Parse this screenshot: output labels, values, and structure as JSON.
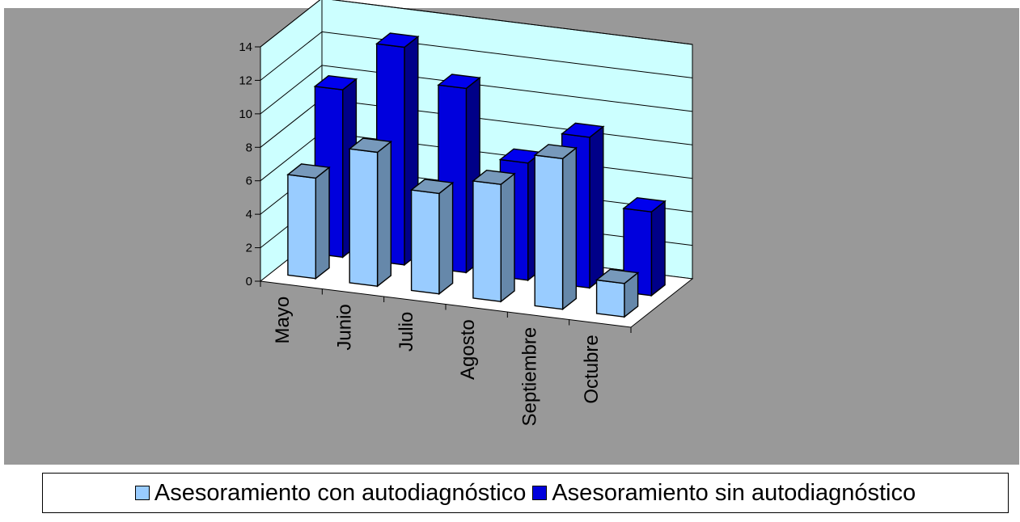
{
  "chart_data": {
    "type": "bar",
    "three_d": true,
    "title": "",
    "xlabel": "",
    "ylabel": "",
    "categories": [
      "Mayo",
      "Junio",
      "Julio",
      "Agosto",
      "Septiembre",
      "Octubre"
    ],
    "series": [
      {
        "name": "Asesoramiento con autodiagnóstico",
        "values": [
          6,
          8,
          6,
          7,
          9,
          2
        ],
        "color": "#99CCFF"
      },
      {
        "name": "Asesoramiento sin autodiagnóstico",
        "values": [
          10,
          13,
          11,
          7,
          9,
          5
        ],
        "color": "#0000DD"
      }
    ],
    "ylim": [
      0,
      14
    ],
    "yticks": [
      "0",
      "2",
      "4",
      "6",
      "8",
      "10",
      "12",
      "14"
    ],
    "grid": true,
    "legend_position": "bottom",
    "background_color": "#999999",
    "wall_color": "#CCFFFF",
    "floor_color": "#FFFFFF"
  }
}
